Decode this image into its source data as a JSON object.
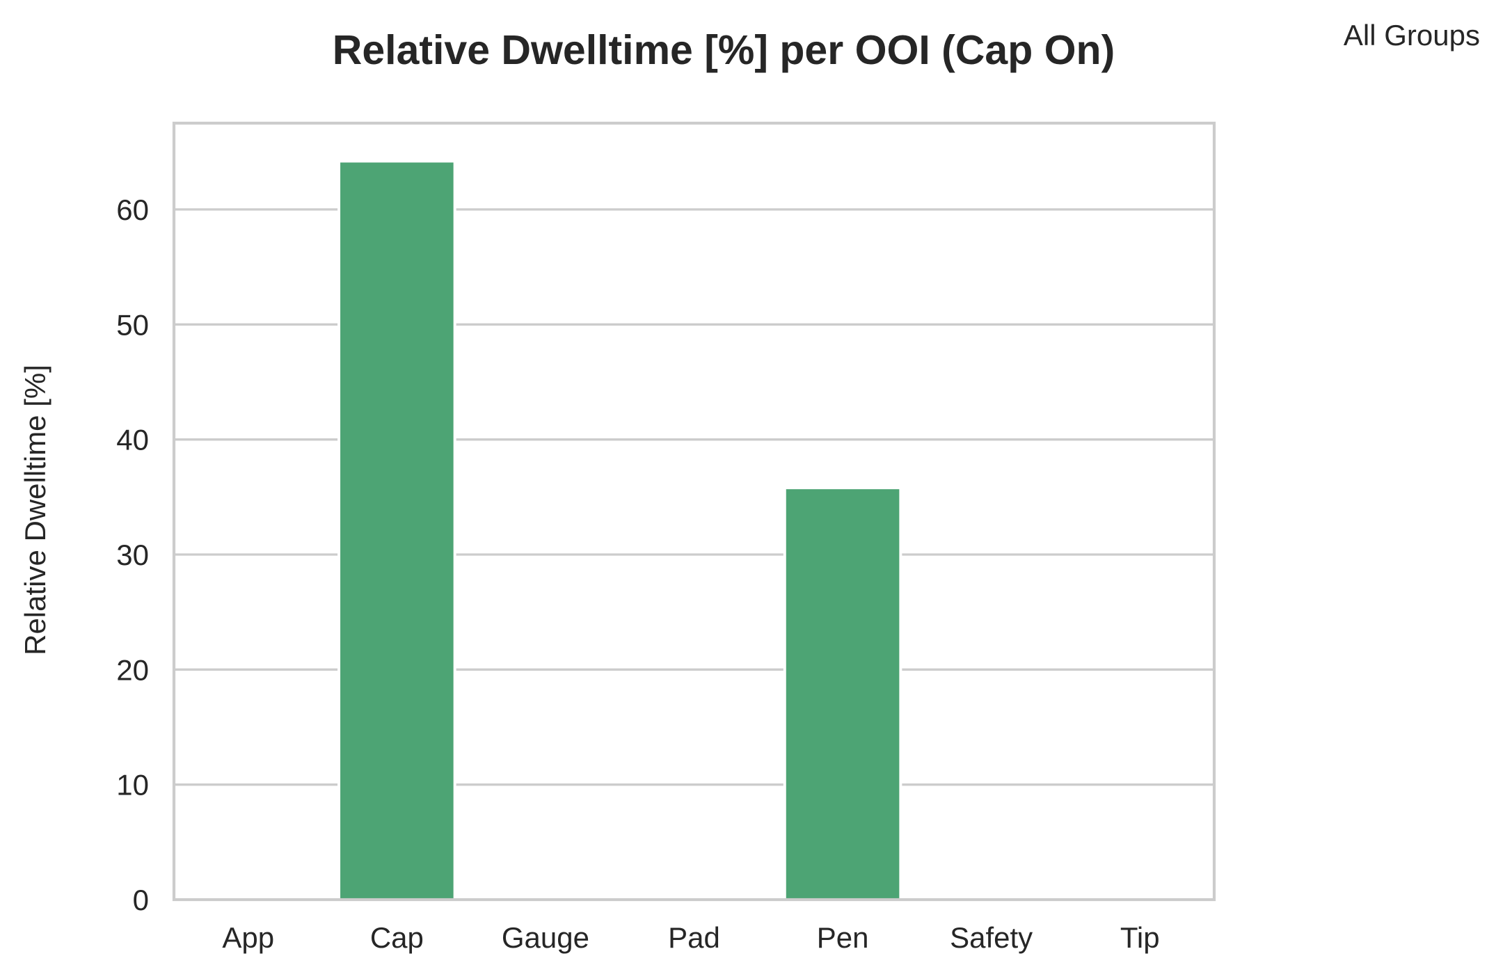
{
  "chart_data": {
    "type": "bar",
    "title": "Relative Dwelltime [%] per OOI (Cap On)",
    "xlabel": "",
    "ylabel": "Relative Dwelltime [%]",
    "categories": [
      "App",
      "Cap",
      "Gauge",
      "Pad",
      "Pen",
      "Safety",
      "Tip"
    ],
    "series": [
      {
        "name": "All Groups",
        "values": [
          0,
          64.2,
          0,
          0,
          35.8,
          0,
          0
        ],
        "color": "#4da474"
      }
    ],
    "legend": {
      "title": "All Groups",
      "placement": "upper right, outside"
    },
    "ylim": [
      0,
      67.5
    ],
    "yticks": [
      0,
      10,
      20,
      30,
      40,
      50,
      60
    ],
    "grid": "horizontal",
    "colors": {
      "bar": "#4da474",
      "grid": "#cccccc",
      "frame": "#cccccc",
      "text": "#262626"
    }
  }
}
